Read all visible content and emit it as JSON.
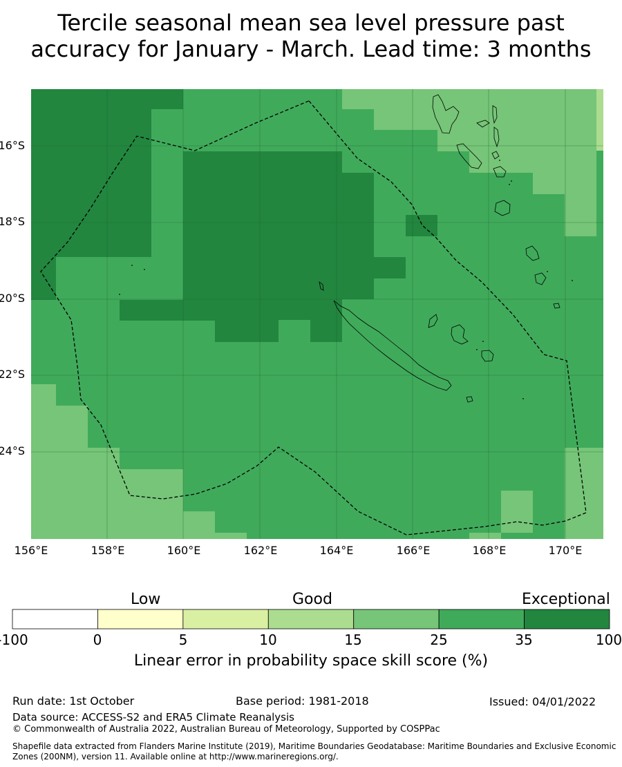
{
  "title": {
    "line1": "Tercile seasonal mean sea level pressure past",
    "line2": "accuracy for January - March. Lead time: 3 months"
  },
  "map": {
    "lat_labels": [
      "16°S",
      "18°S",
      "20°S",
      "22°S",
      "24°S"
    ],
    "lon_labels": [
      "156°E",
      "158°E",
      "160°E",
      "162°E",
      "164°E",
      "166°E",
      "168°E",
      "170°E"
    ],
    "region": "New Caledonia EEZ",
    "dominant_class": "25-35",
    "colors": {
      "c35_100": "#22863f",
      "c25_35": "#40aa5b",
      "c15_25": "#76c578",
      "c10_15": "#acdc8f",
      "c5_10": "#d9f0a3",
      "c0_5": "#ffffcc",
      "cneg": "#ffffff",
      "land": "#000000",
      "boundary": "#000000"
    }
  },
  "colorbar": {
    "categories": [
      "Low",
      "Good",
      "Exceptional"
    ],
    "ticks": [
      "-100",
      "0",
      "5",
      "10",
      "15",
      "25",
      "35",
      "100"
    ],
    "colors": [
      "#ffffff",
      "#ffffcc",
      "#d9f0a3",
      "#acdc8f",
      "#76c578",
      "#40aa5b",
      "#22863f"
    ],
    "label": "Linear error in probability space skill score (%)"
  },
  "footer": {
    "run_date": "Run date: 1st October",
    "base_period": "Base period: 1981-2018",
    "issued": "Issued: 04/01/2022",
    "data_source": "Data source: ACCESS-S2 and ERA5 Climate Reanalysis",
    "copyright": "© Commonwealth of Australia 2022, Australian Bureau of Meteorology, Supported by COSPPac",
    "shapefile": "Shapefile data extracted from Flanders Marine Institute (2019), Maritime Boundaries Geodatabase: Maritime Boundaries and Exclusive Economic Zones (200NM), version 11. Available online at http://www.marineregions.org/."
  }
}
